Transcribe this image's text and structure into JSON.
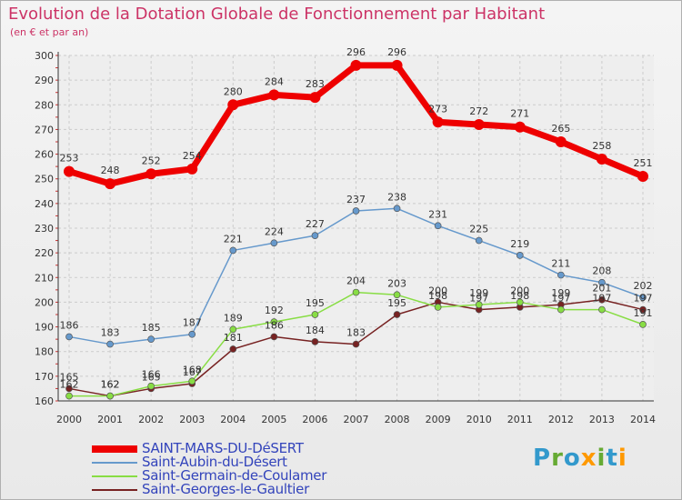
{
  "title": "Evolution de la Dotation Globale de Fonctionnement par Habitant",
  "subtitle": "(en € et par an)",
  "logo": {
    "text": "Proxiti",
    "colors": [
      "#3399cc",
      "#66aa33",
      "#3399cc",
      "#ff9900",
      "#66aa33",
      "#3399cc",
      "#ff9900"
    ]
  },
  "chart_data": {
    "type": "line",
    "title": "Evolution de la Dotation Globale de Fonctionnement par Habitant",
    "x": [
      "2000",
      "2001",
      "2002",
      "2003",
      "2004",
      "2005",
      "2006",
      "2007",
      "2008",
      "2009",
      "2010",
      "2011",
      "2012",
      "2013",
      "2014"
    ],
    "ylim": [
      160,
      300
    ],
    "yticks": [
      160,
      170,
      180,
      190,
      200,
      210,
      220,
      230,
      240,
      250,
      260,
      270,
      280,
      290,
      300
    ],
    "grid": true,
    "legend_position": "bottom-left",
    "series": [
      {
        "name": "SAINT-MARS-DU-DéSERT",
        "color": "#ee0000",
        "values": [
          253,
          248,
          252,
          254,
          280,
          284,
          283,
          296,
          296,
          273,
          272,
          271,
          265,
          258,
          251
        ]
      },
      {
        "name": "Saint-Aubin-du-Désert",
        "color": "#6699cc",
        "values": [
          186,
          183,
          185,
          187,
          221,
          224,
          227,
          237,
          238,
          231,
          225,
          219,
          211,
          208,
          202
        ]
      },
      {
        "name": "Saint-Germain-de-Coulamer",
        "color": "#88dd44",
        "values": [
          162,
          162,
          166,
          168,
          189,
          192,
          195,
          204,
          203,
          198,
          199,
          200,
          197,
          197,
          191
        ]
      },
      {
        "name": "Saint-Georges-le-Gaultier",
        "color": "#772222",
        "values": [
          165,
          162,
          165,
          167,
          181,
          186,
          184,
          183,
          195,
          200,
          197,
          198,
          199,
          201,
          197
        ]
      }
    ]
  }
}
